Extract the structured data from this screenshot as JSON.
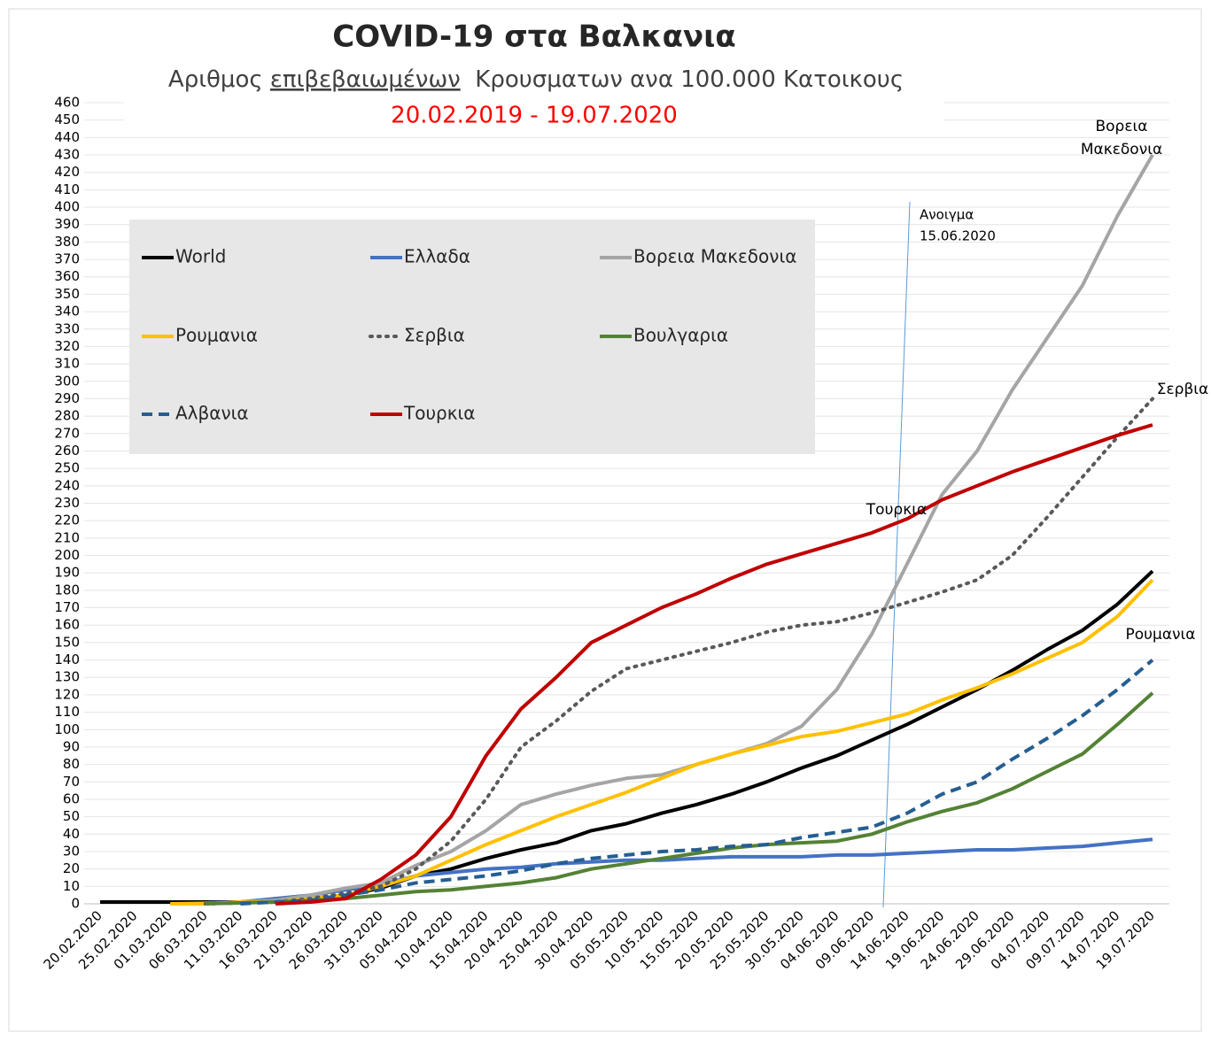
{
  "chart_data": {
    "type": "line",
    "title": "COVID-19 στα Βαλκανια",
    "subtitle": [
      "Αριθμος ",
      "επιβεβαιωμένων",
      "  Κρουσματων ανα 100.000 Κατοικους"
    ],
    "date_range": "20.02.2019 - 19.07.2020",
    "categories": [
      "20.02.2020",
      "25.02.2020",
      "01.03.2020",
      "06.03.2020",
      "11.03.2020",
      "16.03.2020",
      "21.03.2020",
      "26.03.2020",
      "31.03.2020",
      "05.04.2020",
      "10.04.2020",
      "15.04.2020",
      "20.04.2020",
      "25.04.2020",
      "30.04.2020",
      "05.05.2020",
      "10.05.2020",
      "15.05.2020",
      "20.05.2020",
      "25.05.2020",
      "30.05.2020",
      "04.06.2020",
      "09.06.2020",
      "14.06.2020",
      "19.06.2020",
      "24.06.2020",
      "29.06.2020",
      "04.07.2020",
      "09.07.2020",
      "14.07.2020",
      "19.07.2020"
    ],
    "ylim": [
      0,
      460
    ],
    "yticks": [
      0,
      10,
      20,
      30,
      40,
      50,
      60,
      70,
      80,
      90,
      100,
      110,
      120,
      130,
      140,
      150,
      160,
      170,
      180,
      190,
      200,
      210,
      220,
      230,
      240,
      250,
      260,
      270,
      280,
      290,
      300,
      310,
      320,
      330,
      340,
      350,
      360,
      370,
      380,
      390,
      400,
      410,
      420,
      430,
      440,
      450,
      460
    ],
    "grid": true,
    "series": [
      {
        "name": "World",
        "color": "#000000",
        "dash": "solid",
        "values": [
          1,
          1,
          1,
          1,
          1,
          2,
          3,
          5,
          9,
          16,
          20,
          26,
          31,
          35,
          42,
          46,
          52,
          57,
          63,
          70,
          78,
          85,
          94,
          103,
          113,
          123,
          134,
          146,
          157,
          172,
          191
        ]
      },
      {
        "name": "Ελλαδα",
        "color": "#4472c4",
        "dash": "solid",
        "values": [
          null,
          null,
          0,
          0.5,
          1,
          3,
          5,
          8,
          11,
          16,
          18,
          20,
          21,
          23,
          24,
          25,
          25,
          26,
          27,
          27,
          27,
          28,
          28,
          29,
          30,
          31,
          31,
          32,
          33,
          35,
          37
        ]
      },
      {
        "name": "Βορεια Μακεδονια",
        "color": "#a5a5a5",
        "dash": "solid",
        "values": [
          null,
          null,
          null,
          null,
          1,
          2,
          5,
          9,
          12,
          22,
          30,
          42,
          57,
          63,
          68,
          72,
          74,
          80,
          86,
          92,
          102,
          123,
          155,
          195,
          235,
          260,
          295,
          325,
          355,
          395,
          430
        ]
      },
      {
        "name": "Ρουμανια",
        "color": "#ffc000",
        "dash": "solid",
        "values": [
          null,
          null,
          0,
          0,
          1,
          1,
          3,
          5,
          10,
          16,
          25,
          34,
          42,
          50,
          57,
          64,
          72,
          80,
          86,
          91,
          96,
          99,
          104,
          109,
          117,
          124,
          132,
          141,
          150,
          165,
          186
        ]
      },
      {
        "name": "Σερβια",
        "color": "#595959",
        "dash": "dotted",
        "values": [
          null,
          null,
          null,
          0,
          0.5,
          1,
          3,
          6,
          10,
          20,
          36,
          60,
          90,
          105,
          122,
          135,
          140,
          145,
          150,
          156,
          160,
          162,
          167,
          173,
          179,
          186,
          200,
          222,
          245,
          268,
          290
        ]
      },
      {
        "name": "Βουλγαρια",
        "color": "#548235",
        "dash": "solid",
        "values": [
          null,
          null,
          null,
          0,
          0.5,
          1,
          2,
          3,
          5,
          7,
          8,
          10,
          12,
          15,
          20,
          23,
          26,
          29,
          32,
          34,
          35,
          36,
          40,
          47,
          53,
          58,
          66,
          76,
          86,
          103,
          121
        ]
      },
      {
        "name": "Αλβανια",
        "color": "#255e91",
        "dash": "dashed",
        "values": [
          null,
          null,
          null,
          null,
          0,
          1,
          2,
          5,
          8,
          12,
          14,
          16,
          19,
          23,
          26,
          28,
          30,
          31,
          33,
          34,
          38,
          41,
          44,
          52,
          63,
          70,
          83,
          95,
          108,
          123,
          140
        ]
      },
      {
        "name": "Τουρκια",
        "color": "#c00000",
        "dash": "solid",
        "values": [
          null,
          null,
          null,
          null,
          null,
          0,
          1,
          3,
          14,
          28,
          50,
          85,
          112,
          130,
          150,
          160,
          170,
          178,
          187,
          195,
          201,
          207,
          213,
          221,
          232,
          240,
          248,
          255,
          262,
          269,
          275
        ]
      }
    ],
    "annotations": [
      {
        "lines": [
          "Βορεια",
          "Μακεδονια"
        ]
      },
      {
        "lines": [
          "Σερβια"
        ]
      },
      {
        "lines": [
          "Τουρκια"
        ]
      },
      {
        "lines": [
          "Ρουμανια"
        ]
      },
      {
        "lines": [
          "Ανοιγμα",
          "15.06.2020"
        ]
      }
    ]
  }
}
